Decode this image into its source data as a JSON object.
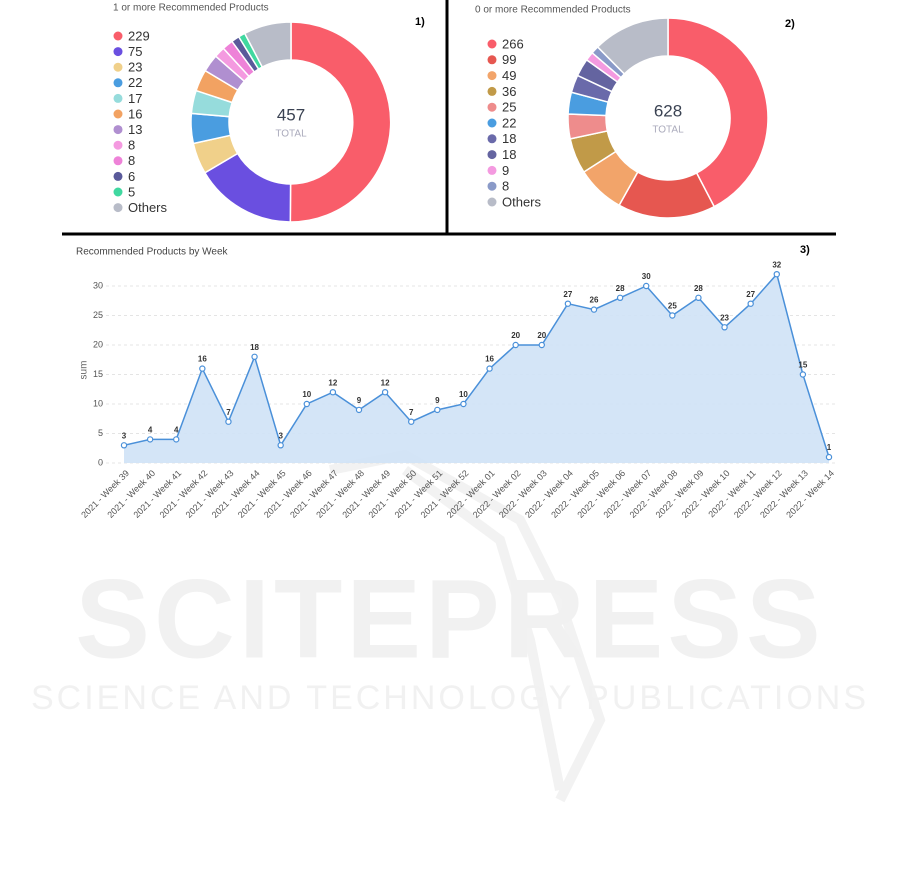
{
  "chart_data": [
    {
      "type": "donut",
      "title": "1 or more Recommended Products",
      "panel": "1)",
      "total": 457,
      "total_label": "TOTAL",
      "categories": [
        null,
        null,
        null,
        null,
        null,
        null,
        null,
        null,
        null,
        null,
        null,
        "Others"
      ],
      "values": [
        229,
        75,
        23,
        22,
        17,
        16,
        13,
        8,
        8,
        6,
        5,
        35
      ],
      "colors": [
        "#f95d6a",
        "#6a4fe0",
        "#f0d08a",
        "#4a9de0",
        "#96dcdc",
        "#f2a262",
        "#b08fd0",
        "#f49ae0",
        "#ee82d8",
        "#5a5a9a",
        "#40d8a0",
        "#b8bcc8"
      ]
    },
    {
      "type": "donut",
      "title": "0 or more Recommended Products",
      "panel": "2)",
      "total": 628,
      "total_label": "TOTAL",
      "categories": [
        null,
        null,
        null,
        null,
        null,
        null,
        null,
        null,
        null,
        null,
        "Others"
      ],
      "values": [
        266,
        99,
        49,
        36,
        25,
        22,
        18,
        18,
        9,
        8,
        78
      ],
      "colors": [
        "#f95d6a",
        "#e65750",
        "#f2a46a",
        "#c19a48",
        "#ee8c8c",
        "#4a9de0",
        "#6a6aaa",
        "#6464a0",
        "#f49ae0",
        "#8a9ac8",
        "#b8bcc8"
      ]
    },
    {
      "type": "line",
      "title": "Recommended Products by Week",
      "panel": "3)",
      "ylabel": "sum",
      "categories": [
        "2021 - Week 39",
        "2021 - Week 40",
        "2021 - Week 41",
        "2021 - Week 42",
        "2021 - Week 43",
        "2021 - Week 44",
        "2021 - Week 45",
        "2021 - Week 46",
        "2021 - Week 47",
        "2021 - Week 48",
        "2021 - Week 49",
        "2021 - Week 50",
        "2021 - Week 51",
        "2021 - Week 52",
        "2022 - Week 01",
        "2022 - Week 02",
        "2022 - Week 03",
        "2022 - Week 04",
        "2022 - Week 05",
        "2022 - Week 06",
        "2022 - Week 07",
        "2022 - Week 08",
        "2022 - Week 09",
        "2022 - Week 10",
        "2022 - Week 11",
        "2022 - Week 12",
        "2022 - Week 13",
        "2022 - Week 14"
      ],
      "values": [
        3,
        4,
        4,
        16,
        7,
        18,
        3,
        10,
        12,
        9,
        12,
        7,
        9,
        10,
        16,
        20,
        20,
        27,
        26,
        28,
        30,
        25,
        28,
        23,
        27,
        32,
        15,
        1
      ],
      "color": "#4a90d9",
      "fill": "#cfe2f6",
      "ylim": [
        0,
        33
      ],
      "yticks": [
        0,
        5,
        10,
        15,
        20,
        25,
        30
      ],
      "grid": true
    }
  ],
  "watermark": {
    "title": "SCITEPRESS",
    "subtitle": "SCIENCE AND TECHNOLOGY PUBLICATIONS"
  }
}
